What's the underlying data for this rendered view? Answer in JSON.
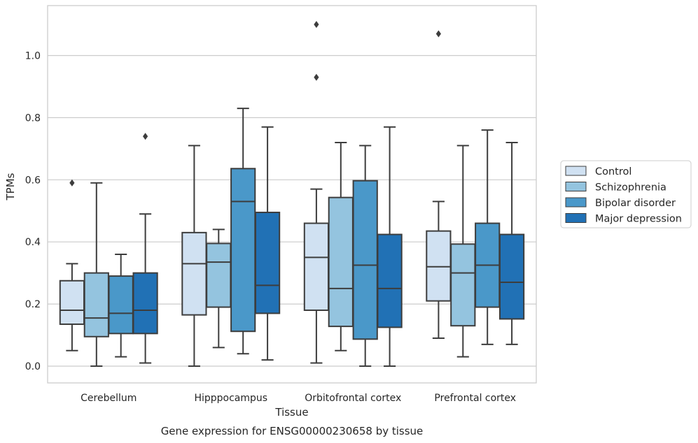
{
  "chart_data": {
    "type": "boxplot",
    "caption": "Gene expression for ENSG00000230658 by tissue",
    "xlabel": "Tissue",
    "ylabel": "TPMs",
    "ylim": [
      -0.053,
      1.16
    ],
    "yticks": [
      "0.0",
      "0.2",
      "0.4",
      "0.6",
      "0.8",
      "1.0"
    ],
    "grid": true,
    "legend_position": "right",
    "categories": [
      "Cerebellum",
      "Hipppocampus",
      "Orbitofrontal cortex",
      "Prefrontal cortex"
    ],
    "series": [
      {
        "name": "Control",
        "color": "#d0e1f2",
        "boxes": [
          {
            "whislo": 0.05,
            "q1": 0.135,
            "median": 0.18,
            "q3": 0.275,
            "whishi": 0.33,
            "fliers": [
              0.59
            ]
          },
          {
            "whislo": 0.0,
            "q1": 0.165,
            "median": 0.33,
            "q3": 0.43,
            "whishi": 0.71,
            "fliers": []
          },
          {
            "whislo": 0.01,
            "q1": 0.18,
            "median": 0.35,
            "q3": 0.46,
            "whishi": 0.57,
            "fliers": [
              0.93,
              1.1
            ]
          },
          {
            "whislo": 0.09,
            "q1": 0.21,
            "median": 0.32,
            "q3": 0.435,
            "whishi": 0.53,
            "fliers": [
              1.07
            ]
          }
        ]
      },
      {
        "name": "Schizophrenia",
        "color": "#94c4df",
        "boxes": [
          {
            "whislo": 0.0,
            "q1": 0.095,
            "median": 0.155,
            "q3": 0.3,
            "whishi": 0.59,
            "fliers": []
          },
          {
            "whislo": 0.06,
            "q1": 0.19,
            "median": 0.335,
            "q3": 0.395,
            "whishi": 0.44,
            "fliers": []
          },
          {
            "whislo": 0.05,
            "q1": 0.128,
            "median": 0.25,
            "q3": 0.543,
            "whishi": 0.72,
            "fliers": []
          },
          {
            "whislo": 0.03,
            "q1": 0.13,
            "median": 0.3,
            "q3": 0.393,
            "whishi": 0.71,
            "fliers": []
          }
        ]
      },
      {
        "name": "Bipolar disorder",
        "color": "#4a98c9",
        "boxes": [
          {
            "whislo": 0.03,
            "q1": 0.105,
            "median": 0.17,
            "q3": 0.29,
            "whishi": 0.36,
            "fliers": []
          },
          {
            "whislo": 0.04,
            "q1": 0.112,
            "median": 0.53,
            "q3": 0.636,
            "whishi": 0.83,
            "fliers": []
          },
          {
            "whislo": 0.0,
            "q1": 0.087,
            "median": 0.325,
            "q3": 0.597,
            "whishi": 0.71,
            "fliers": []
          },
          {
            "whislo": 0.07,
            "q1": 0.19,
            "median": 0.325,
            "q3": 0.46,
            "whishi": 0.76,
            "fliers": []
          }
        ]
      },
      {
        "name": "Major depression",
        "color": "#2171b5",
        "boxes": [
          {
            "whislo": 0.01,
            "q1": 0.105,
            "median": 0.18,
            "q3": 0.3,
            "whishi": 0.49,
            "fliers": [
              0.74
            ]
          },
          {
            "whislo": 0.02,
            "q1": 0.17,
            "median": 0.26,
            "q3": 0.495,
            "whishi": 0.77,
            "fliers": []
          },
          {
            "whislo": 0.0,
            "q1": 0.125,
            "median": 0.25,
            "q3": 0.424,
            "whishi": 0.77,
            "fliers": []
          },
          {
            "whislo": 0.07,
            "q1": 0.152,
            "median": 0.27,
            "q3": 0.424,
            "whishi": 0.72,
            "fliers": []
          }
        ]
      }
    ]
  }
}
